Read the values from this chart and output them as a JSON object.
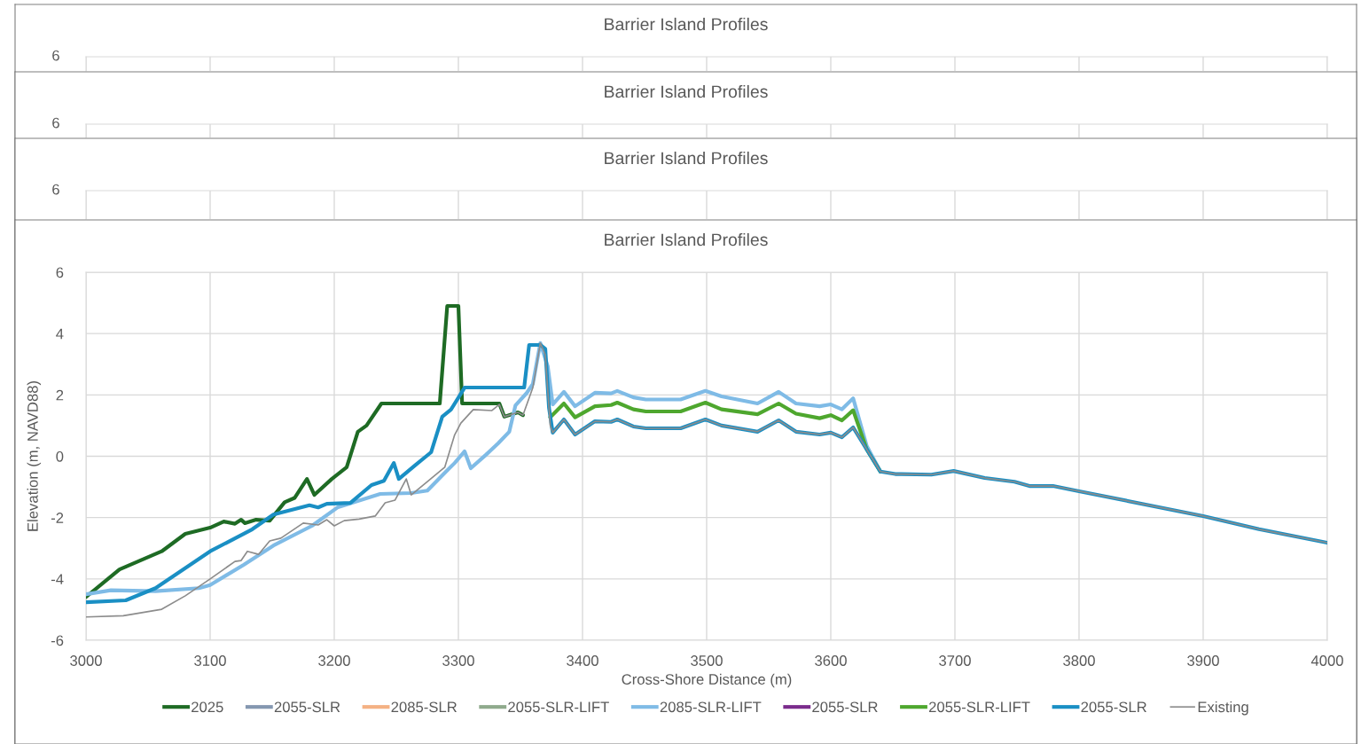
{
  "chart_data": [
    {
      "type": "other",
      "title": "Barrier Island Profiles",
      "categories": [
        null,
        null,
        null,
        null,
        null,
        null,
        null,
        null,
        null,
        null,
        null
      ],
      "annotations": [
        "6"
      ]
    },
    {
      "type": "other",
      "title": "Barrier Island Profiles",
      "categories": [
        null,
        null,
        null,
        null,
        null,
        null,
        null,
        null,
        null,
        null,
        null
      ],
      "annotations": [
        "6"
      ]
    },
    {
      "type": "other",
      "title": "Barrier Island Profiles",
      "categories": [
        null,
        null,
        null,
        null,
        null,
        null,
        null,
        null,
        null,
        null,
        null
      ],
      "annotations": [
        "6"
      ]
    },
    {
      "type": "line",
      "title": "Barrier Island Profiles",
      "xlabel": "Cross-Shore Distance (m)",
      "ylabel": "Elevation (m, NAVD88)",
      "xlim": [
        3000,
        4000
      ],
      "xticks": [
        3000,
        3100,
        3200,
        3300,
        3400,
        3500,
        3600,
        3700,
        3800,
        3900,
        4000
      ],
      "ylim": [
        -6,
        6
      ],
      "yticks": [
        -6,
        -4,
        -2,
        0,
        2,
        4,
        6
      ],
      "grid": true,
      "legend": "bottom",
      "line_style": "solid",
      "marker": "none",
      "series": [
        {
          "name": "2025",
          "color": "#1e6b24",
          "x": [
            3000,
            3027,
            3061,
            3080,
            3100,
            3111,
            3120,
            3125,
            3128,
            3137,
            3148,
            3160,
            3168,
            3178,
            3184,
            3198,
            3210,
            3219,
            3226,
            3238,
            3285,
            3291,
            3300,
            3303,
            3333,
            3337,
            3348,
            3352
          ],
          "values": [
            -4.59,
            -3.69,
            -3.1,
            -2.53,
            -2.33,
            -2.13,
            -2.2,
            -2.07,
            -2.18,
            -2.07,
            -2.1,
            -1.5,
            -1.36,
            -0.74,
            -1.26,
            -0.74,
            -0.36,
            0.8,
            1.0,
            1.72,
            1.72,
            4.9,
            4.9,
            1.72,
            1.72,
            1.29,
            1.43,
            1.34
          ]
        },
        {
          "name": "2055-SLR",
          "color": "#8497b0",
          "values": [
            null
          ]
        },
        {
          "name": "2085-SLR",
          "color": "#f4b183",
          "values": [
            null
          ]
        },
        {
          "name": "2055-SLR-LIFT",
          "color": "#8faa8c",
          "values": [
            null
          ]
        },
        {
          "name": "2085-SLR-LIFT",
          "color": "#7fbbe6",
          "x": [
            3000,
            3020,
            3056,
            3091,
            3100,
            3127,
            3151,
            3182,
            3203,
            3237,
            3262,
            3275,
            3289,
            3297,
            3305,
            3310,
            3322,
            3332,
            3341,
            3346,
            3355,
            3360,
            3366,
            3372,
            3376,
            3385,
            3394,
            3410,
            3423,
            3428,
            3441,
            3451,
            3479,
            3499,
            3512,
            3541,
            3558,
            3572,
            3591,
            3600,
            3609,
            3618,
            3629,
            3640
          ],
          "values": [
            -4.5,
            -4.37,
            -4.4,
            -4.3,
            -4.2,
            -3.54,
            -2.91,
            -2.27,
            -1.66,
            -1.23,
            -1.2,
            -1.12,
            -0.54,
            -0.22,
            0.16,
            -0.39,
            0.04,
            0.42,
            0.8,
            1.66,
            2.06,
            2.36,
            3.69,
            2.93,
            1.69,
            2.1,
            1.63,
            2.07,
            2.05,
            2.13,
            1.92,
            1.85,
            1.85,
            2.13,
            1.95,
            1.72,
            2.1,
            1.72,
            1.63,
            1.69,
            1.53,
            1.89,
            0.33,
            -0.5
          ]
        },
        {
          "name": "2055-SLR",
          "color": "#7b2c8c",
          "values": [
            null
          ]
        },
        {
          "name": "2055-SLR-LIFT",
          "color": "#4ea72e",
          "x": [
            3374,
            3385,
            3394,
            3410,
            3423,
            3428,
            3441,
            3451,
            3479,
            3499,
            3512,
            3541,
            3558,
            3572,
            3591,
            3600,
            3609,
            3618,
            3629,
            3640
          ],
          "values": [
            1.27,
            1.72,
            1.27,
            1.63,
            1.67,
            1.75,
            1.53,
            1.46,
            1.46,
            1.75,
            1.53,
            1.37,
            1.72,
            1.39,
            1.24,
            1.34,
            1.17,
            1.5,
            0.22,
            -0.5
          ]
        },
        {
          "name": "2055-SLR",
          "color": "#1a8fc4",
          "x": [
            3000,
            3032,
            3056,
            3100,
            3134,
            3151,
            3180,
            3187,
            3194,
            3213,
            3230,
            3240,
            3248,
            3252,
            3265,
            3278,
            3287,
            3294,
            3305,
            3353,
            3357,
            3366,
            3370,
            3373,
            3376,
            3385,
            3394,
            3410,
            3423,
            3428,
            3441,
            3451,
            3479,
            3499,
            3512,
            3541,
            3558,
            3572,
            3591,
            3600,
            3609,
            3618,
            3629,
            3640,
            3652,
            3681,
            3699,
            3724,
            3748,
            3760,
            3779,
            3800,
            3900,
            3945,
            4000
          ],
          "values": [
            -4.76,
            -4.7,
            -4.3,
            -3.1,
            -2.38,
            -1.9,
            -1.6,
            -1.67,
            -1.55,
            -1.52,
            -0.94,
            -0.8,
            -0.22,
            -0.74,
            -0.3,
            0.13,
            1.29,
            1.52,
            2.24,
            2.24,
            3.63,
            3.63,
            3.5,
            1.58,
            0.77,
            1.2,
            0.71,
            1.14,
            1.12,
            1.2,
            0.97,
            0.91,
            0.91,
            1.2,
            1.0,
            0.8,
            1.17,
            0.8,
            0.71,
            0.77,
            0.62,
            0.94,
            0.22,
            -0.5,
            -0.58,
            -0.6,
            -0.48,
            -0.71,
            -0.83,
            -0.97,
            -0.97,
            -1.14,
            -1.95,
            -2.38,
            -2.82
          ]
        },
        {
          "name": "Existing",
          "color": "#8c8c8c",
          "x": [
            3000,
            3030,
            3061,
            3080,
            3100,
            3120,
            3125,
            3130,
            3139,
            3148,
            3157,
            3175,
            3187,
            3194,
            3200,
            3208,
            3220,
            3233,
            3241,
            3249,
            3258,
            3262,
            3275,
            3289,
            3297,
            3302,
            3312,
            3327,
            3333,
            3337,
            3348,
            3352,
            3360,
            3366,
            3370,
            3374,
            3376,
            3385,
            3394,
            3410,
            3423,
            3428,
            3441,
            3451,
            3479,
            3499,
            3512,
            3541,
            3558,
            3572,
            3591,
            3600,
            3609,
            3618,
            3629,
            3640,
            3652,
            3681,
            3699,
            3724,
            3748,
            3760,
            3779,
            3800,
            3900,
            3945,
            4000
          ],
          "values": [
            -5.24,
            -5.2,
            -4.99,
            -4.55,
            -4.0,
            -3.43,
            -3.4,
            -3.1,
            -3.2,
            -2.76,
            -2.67,
            -2.18,
            -2.24,
            -2.07,
            -2.27,
            -2.1,
            -2.05,
            -1.95,
            -1.52,
            -1.43,
            -0.74,
            -1.26,
            -0.83,
            -0.36,
            0.7,
            1.08,
            1.52,
            1.49,
            1.69,
            1.29,
            1.43,
            1.34,
            2.24,
            3.69,
            3.31,
            1.0,
            0.77,
            1.2,
            0.71,
            1.14,
            1.12,
            1.2,
            0.97,
            0.91,
            0.91,
            1.2,
            1.0,
            0.8,
            1.17,
            0.8,
            0.71,
            0.77,
            0.62,
            0.94,
            0.22,
            -0.5,
            -0.58,
            -0.6,
            -0.48,
            -0.71,
            -0.83,
            -0.97,
            -0.97,
            -1.14,
            -1.95,
            -2.38,
            -2.82
          ]
        }
      ]
    }
  ]
}
